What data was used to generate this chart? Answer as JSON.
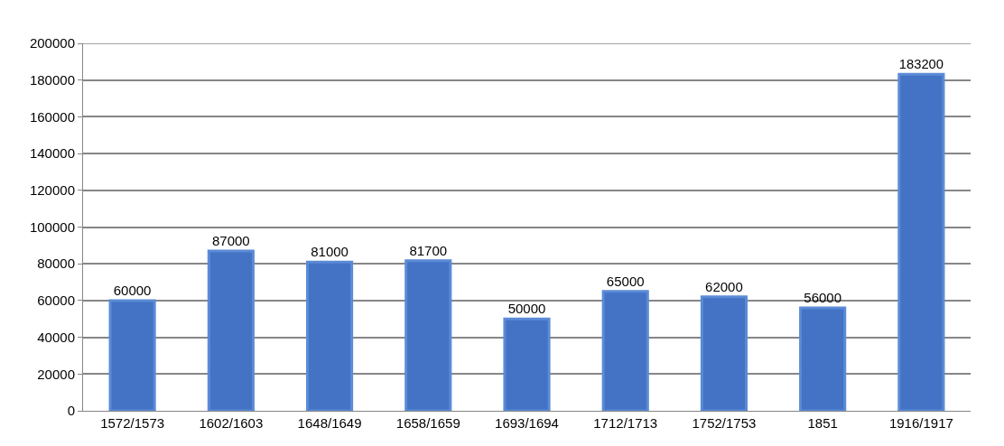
{
  "chart_data": {
    "type": "bar",
    "categories": [
      "1572/1573",
      "1602/1603",
      "1648/1649",
      "1658/1659",
      "1693/1694",
      "1712/1713",
      "1752/1753",
      "1851",
      "1916/1917"
    ],
    "values": [
      60000,
      87000,
      81000,
      81700,
      50000,
      65000,
      62000,
      56000,
      183200
    ],
    "color": "#4472c4",
    "ylim": [
      0,
      200000
    ],
    "yticks": [
      0,
      20000,
      40000,
      60000,
      80000,
      100000,
      120000,
      140000,
      160000,
      180000,
      200000
    ],
    "grid": "y",
    "data_labels": true
  }
}
